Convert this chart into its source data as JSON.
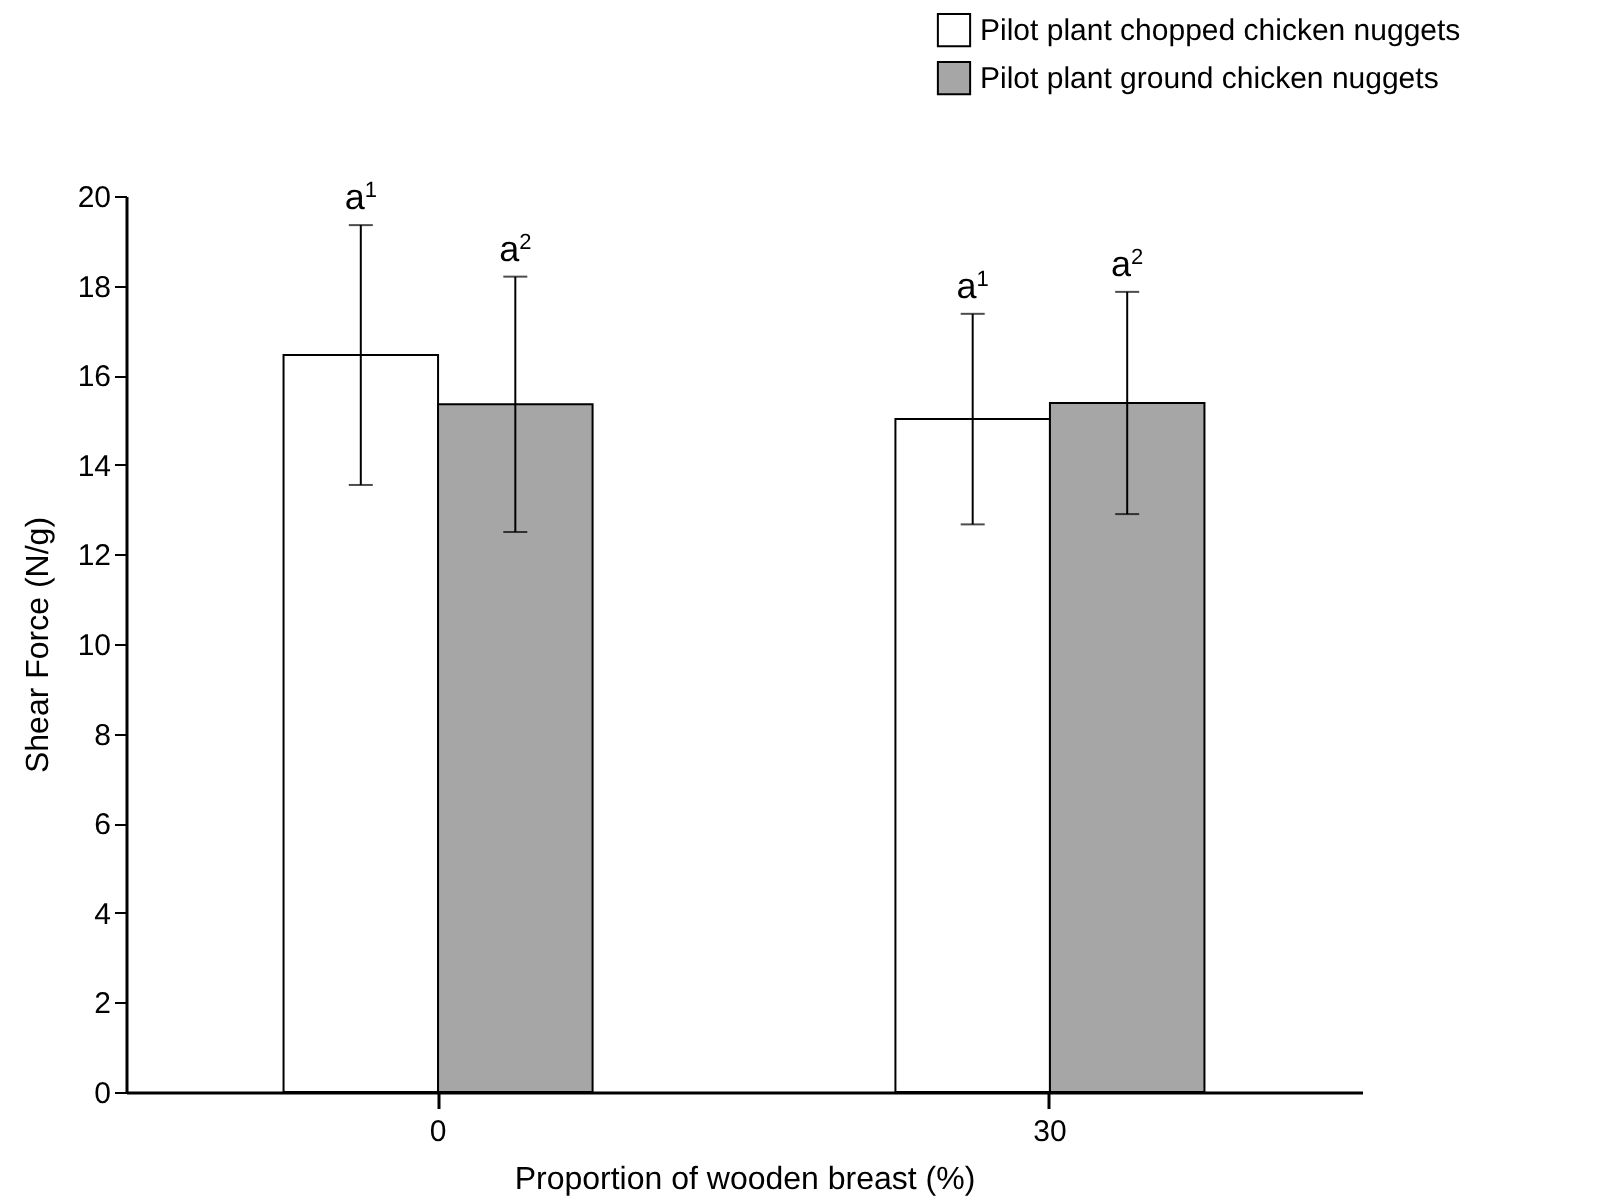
{
  "chart_data": {
    "type": "bar",
    "xlabel": "Proportion of wooden breast (%)",
    "ylabel": "Shear Force (N/g)",
    "categories": [
      "0",
      "30"
    ],
    "series": [
      {
        "name": "Pilot plant chopped chicken nuggets",
        "color": "#ffffff",
        "values": [
          16.45,
          15.02
        ],
        "errors": [
          2.9,
          2.35
        ]
      },
      {
        "name": "Pilot plant ground chicken nuggets",
        "color": "#a6a6a6",
        "values": [
          15.35,
          15.38
        ],
        "errors": [
          2.85,
          2.48
        ]
      }
    ],
    "ylim": [
      0,
      20
    ],
    "yticks": [
      0,
      2,
      4,
      6,
      8,
      10,
      12,
      14,
      16,
      18,
      20
    ],
    "annotations": [
      "a$^{1}$",
      "a$^{2}$",
      "a$^{1}$",
      "a$^{2}$"
    ],
    "grid": false,
    "legend": "top right"
  }
}
